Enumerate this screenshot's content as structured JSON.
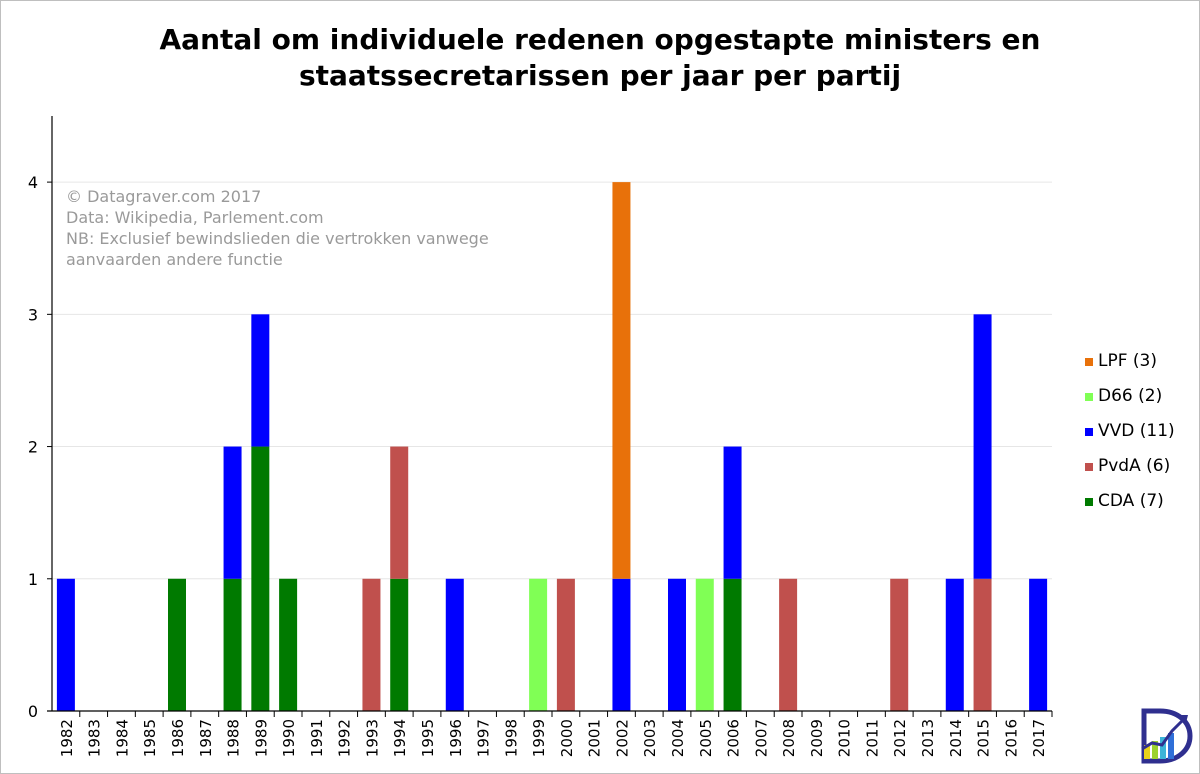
{
  "chart_data": {
    "type": "bar",
    "stacked": true,
    "title_lines": [
      "Aantal om individuele redenen opgestapte ministers en",
      "staatssecretarissen per jaar per partij"
    ],
    "xlabel": "",
    "ylabel": "",
    "ylim": [
      0,
      4.5
    ],
    "yticks": [
      0,
      1,
      2,
      3,
      4
    ],
    "grid": true,
    "legend_position": "right",
    "categories": [
      "1982",
      "1983",
      "1984",
      "1985",
      "1986",
      "1987",
      "1988",
      "1989",
      "1990",
      "1991",
      "1992",
      "1993",
      "1994",
      "1995",
      "1996",
      "1997",
      "1998",
      "1999",
      "2000",
      "2001",
      "2002",
      "2003",
      "2004",
      "2005",
      "2006",
      "2007",
      "2008",
      "2009",
      "2010",
      "2011",
      "2012",
      "2013",
      "2014",
      "2015",
      "2016",
      "2017"
    ],
    "series": [
      {
        "name": "CDA",
        "legend_label": "CDA (7)",
        "color": "#007a00",
        "values": [
          0,
          0,
          0,
          0,
          1,
          0,
          1,
          2,
          1,
          0,
          0,
          0,
          1,
          0,
          0,
          0,
          0,
          0,
          0,
          0,
          0,
          0,
          0,
          0,
          1,
          0,
          0,
          0,
          0,
          0,
          0,
          0,
          0,
          0,
          0,
          0
        ]
      },
      {
        "name": "PvdA",
        "legend_label": "PvdA (6)",
        "color": "#c0504d",
        "values": [
          0,
          0,
          0,
          0,
          0,
          0,
          0,
          0,
          0,
          0,
          0,
          1,
          1,
          0,
          0,
          0,
          0,
          0,
          1,
          0,
          0,
          0,
          0,
          0,
          0,
          0,
          1,
          0,
          0,
          0,
          1,
          0,
          0,
          1,
          0,
          0
        ]
      },
      {
        "name": "VVD",
        "legend_label": "VVD (11)",
        "color": "#0000ff",
        "values": [
          1,
          0,
          0,
          0,
          0,
          0,
          1,
          1,
          0,
          0,
          0,
          0,
          0,
          0,
          1,
          0,
          0,
          0,
          0,
          0,
          1,
          0,
          1,
          0,
          1,
          0,
          0,
          0,
          0,
          0,
          0,
          0,
          1,
          2,
          0,
          1
        ]
      },
      {
        "name": "D66",
        "legend_label": "D66 (2)",
        "color": "#80ff55",
        "values": [
          0,
          0,
          0,
          0,
          0,
          0,
          0,
          0,
          0,
          0,
          0,
          0,
          0,
          0,
          0,
          0,
          0,
          1,
          0,
          0,
          0,
          0,
          0,
          1,
          0,
          0,
          0,
          0,
          0,
          0,
          0,
          0,
          0,
          0,
          0,
          0
        ]
      },
      {
        "name": "LPF",
        "legend_label": "LPF (3)",
        "color": "#e8710a",
        "values": [
          0,
          0,
          0,
          0,
          0,
          0,
          0,
          0,
          0,
          0,
          0,
          0,
          0,
          0,
          0,
          0,
          0,
          0,
          0,
          0,
          3,
          0,
          0,
          0,
          0,
          0,
          0,
          0,
          0,
          0,
          0,
          0,
          0,
          0,
          0,
          0
        ]
      }
    ],
    "legend_order": [
      "LPF",
      "D66",
      "VVD",
      "PvdA",
      "CDA"
    ],
    "annotations": [
      "© Datagraver.com 2017",
      "Data: Wikipedia, Parlement.com",
      "NB: Exclusief bewindslieden die vertrokken vanwege",
      "aanvaarden andere functie"
    ]
  }
}
